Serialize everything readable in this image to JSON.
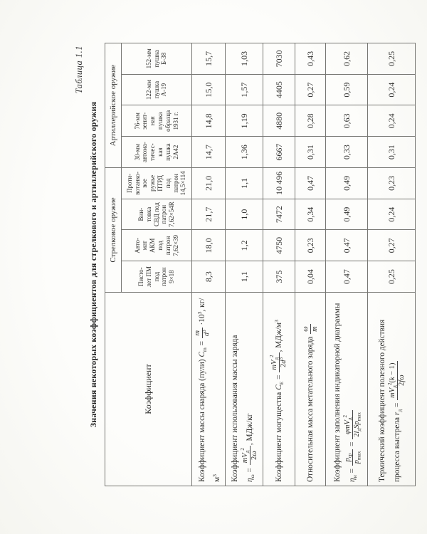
{
  "page": {
    "caption": "Таблица 1.1",
    "title": "Значения некоторых коэффициентов для  стрелкового и артиллерийского оружия"
  },
  "table": {
    "corner_header": "Коэффициент",
    "groups": [
      {
        "label": "Стрелковое оружие",
        "span": 4
      },
      {
        "label": "Артиллерийское оружие",
        "span": 4
      }
    ],
    "columns": [
      {
        "lines": [
          "Писто-",
          "лет ПМ",
          "под",
          "патрон",
          "9×18"
        ]
      },
      {
        "lines": [
          "Авто-",
          "мат",
          "АКМ",
          "под",
          "патрон",
          "7,62×39"
        ]
      },
      {
        "lines": [
          "Вин-",
          "товка",
          "СВД под",
          "патрон",
          "7,62×54R"
        ]
      },
      {
        "lines": [
          "Проти-",
          "вотанко-",
          "вое",
          "ружье",
          "ПТРД",
          "под",
          "патрон",
          "14,5×114"
        ]
      },
      {
        "lines": [
          "30-мм",
          "автома-",
          "тичес-",
          "кая",
          "пушка",
          "2А42"
        ]
      },
      {
        "lines": [
          "76-мм",
          "зенит-",
          "ная",
          "пушка",
          "образца",
          "1931 г."
        ]
      },
      {
        "lines": [
          "122-мм",
          "пушка",
          "А-19"
        ]
      },
      {
        "lines": [
          "152-мм",
          "пушка",
          "Б-38"
        ]
      }
    ],
    "rows": [
      {
        "label_segments": [
          {
            "t": "Коэффициент массы снаряда (пули) "
          },
          {
            "v": "C"
          },
          {
            "sub": "m"
          },
          {
            "t": " = "
          },
          {
            "frac": {
              "n": [
                {
                  "v": "m"
                }
              ],
              "d": [
                {
                  "v": "d"
                },
                {
                  "sup": "3"
                }
              ]
            }
          },
          {
            "t": " ·10"
          },
          {
            "sup": "3"
          },
          {
            "t": ", кг/м"
          },
          {
            "sup": "3"
          }
        ],
        "values": [
          "8,3",
          "18,0",
          "21,7",
          "21,0",
          "14,7",
          "14,8",
          "15,0",
          "15,7"
        ]
      },
      {
        "label_segments": [
          {
            "t": "Коэффициент использования массы заряда"
          },
          {
            "br": true
          },
          {
            "v": "η"
          },
          {
            "sub": "ω"
          },
          {
            "t": " = "
          },
          {
            "frac": {
              "n": [
                {
                  "v": "mV"
                },
                {
                  "sub": "д"
                },
                {
                  "sup": "2"
                }
              ],
              "d": [
                {
                  "t": "2"
                },
                {
                  "v": "ω"
                }
              ]
            }
          },
          {
            "t": ", МДж/кг"
          }
        ],
        "values": [
          "1,1",
          "1,2",
          "1,0",
          "1,1",
          "1,36",
          "1,19",
          "1,57",
          "1,03"
        ]
      },
      {
        "label_segments": [
          {
            "t": "Коэффициент могущества "
          },
          {
            "v": "C"
          },
          {
            "sub": "E"
          },
          {
            "t": " = "
          },
          {
            "frac": {
              "n": [
                {
                  "v": "mV"
                },
                {
                  "sub": "д"
                },
                {
                  "sup": "2"
                }
              ],
              "d": [
                {
                  "t": "2"
                },
                {
                  "v": "d"
                },
                {
                  "sup": "3"
                }
              ]
            }
          },
          {
            "t": ", МДж/м"
          },
          {
            "sup": "3"
          }
        ],
        "values": [
          "375",
          "4750",
          "7472",
          "10 496",
          "6667",
          "4880",
          "4405",
          "7030"
        ]
      },
      {
        "label_segments": [
          {
            "t": "Относительная масса метательного заряда "
          },
          {
            "frac": {
              "n": [
                {
                  "v": "ω"
                }
              ],
              "d": [
                {
                  "v": "m"
                }
              ]
            }
          }
        ],
        "values": [
          "0,04",
          "0,23",
          "0,34",
          "0,47",
          "0,31",
          "0,28",
          "0,27",
          "0,43"
        ]
      },
      {
        "label_segments": [
          {
            "t": "Коэффициент заполнения индикаторной диаграммы"
          },
          {
            "br": true
          },
          {
            "v": "η"
          },
          {
            "sub": "и"
          },
          {
            "t": " = "
          },
          {
            "frac": {
              "n": [
                {
                  "v": "p"
                },
                {
                  "sub": "ср"
                }
              ],
              "d": [
                {
                  "v": "p"
                },
                {
                  "sub": "max"
                }
              ]
            }
          },
          {
            "t": " = "
          },
          {
            "frac": {
              "n": [
                {
                  "v": "φmV"
                },
                {
                  "sub": "д"
                },
                {
                  "sup": "2"
                }
              ],
              "d": [
                {
                  "t": "2"
                },
                {
                  "v": "l"
                },
                {
                  "sub": "д"
                },
                {
                  "v": "Sp"
                },
                {
                  "sub": "max"
                }
              ]
            }
          }
        ],
        "values": [
          "0,47",
          "0,47",
          "0,49",
          "0,49",
          "0,33",
          "0,63",
          "0,59",
          "0,62"
        ]
      },
      {
        "label_segments": [
          {
            "t": "Термический коэффициент полезного действия"
          },
          {
            "br": true
          },
          {
            "t": "процесса выстрела "
          },
          {
            "v": "r"
          },
          {
            "sub": "д"
          },
          {
            "t": " = "
          },
          {
            "frac": {
              "n": [
                {
                  "v": "mV"
                },
                {
                  "sub": "д"
                },
                {
                  "sup": "2"
                },
                {
                  "t": "("
                },
                {
                  "v": "k"
                },
                {
                  "t": " − 1)"
                }
              ],
              "d": [
                {
                  "t": "2"
                },
                {
                  "v": "fω"
                }
              ]
            }
          }
        ],
        "values": [
          "0,25",
          "0,27",
          "0,24",
          "0,23",
          "0,31",
          "0,24",
          "0,24",
          "0,25"
        ]
      }
    ]
  }
}
